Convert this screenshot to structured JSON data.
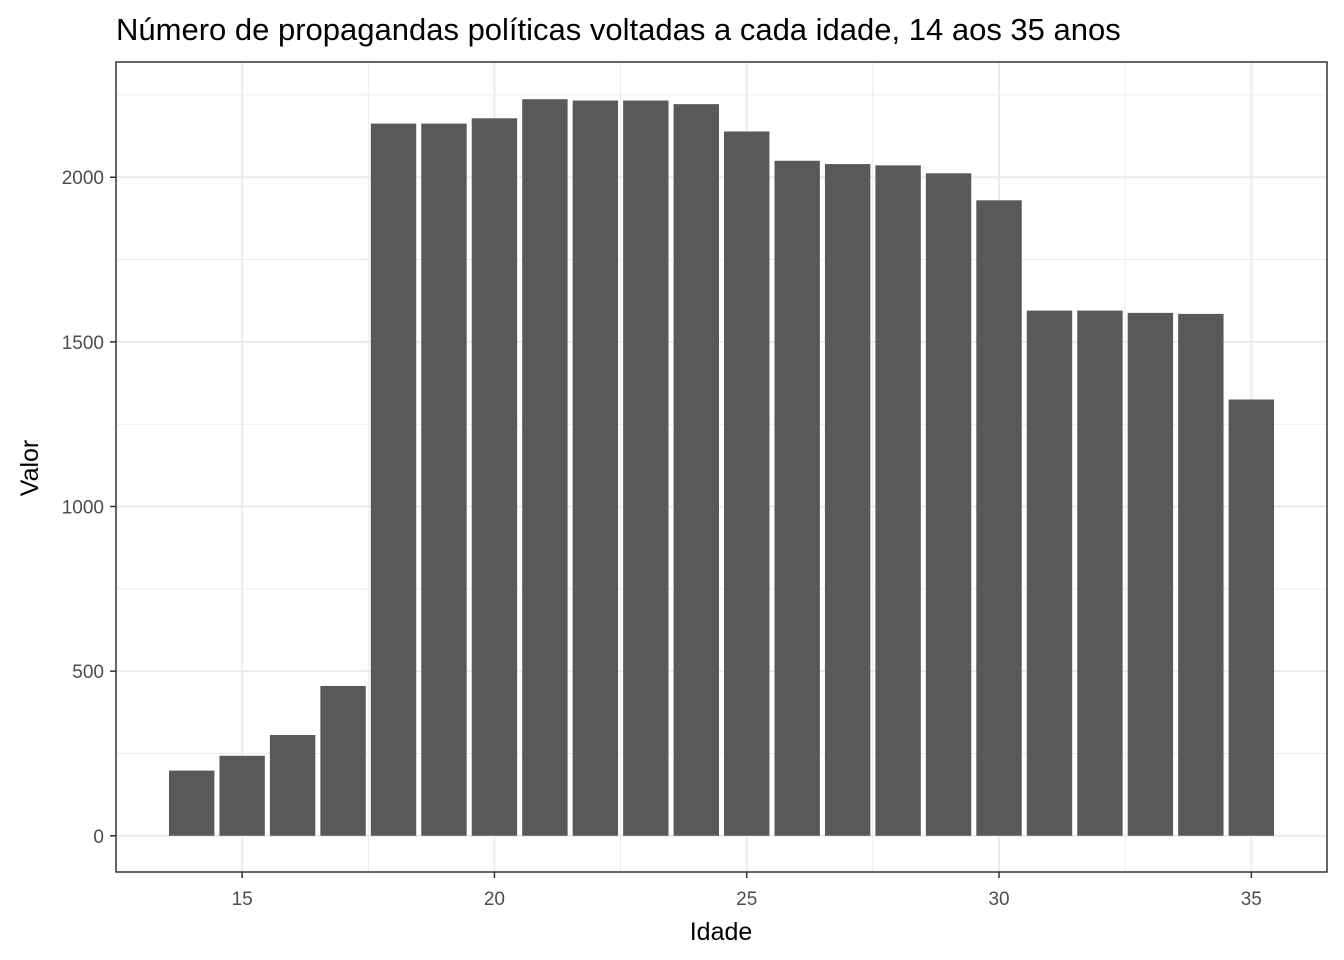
{
  "chart_data": {
    "type": "bar",
    "title": "Número de propagandas políticas voltadas a cada idade, 14 aos 35 anos",
    "xlabel": "Idade",
    "ylabel": "Valor",
    "x": [
      14,
      15,
      16,
      17,
      18,
      19,
      20,
      21,
      22,
      23,
      24,
      25,
      26,
      27,
      28,
      29,
      30,
      31,
      32,
      33,
      34,
      35
    ],
    "values": [
      198,
      243,
      306,
      455,
      2163,
      2163,
      2179,
      2237,
      2233,
      2233,
      2222,
      2139,
      2050,
      2040,
      2036,
      2012,
      1930,
      1595,
      1595,
      1588,
      1585,
      1325
    ],
    "xlim": [
      12.5,
      36.5
    ],
    "ylim": [
      -110,
      2350
    ],
    "x_ticks": [
      15,
      20,
      25,
      30,
      35
    ],
    "y_ticks": [
      0,
      500,
      1000,
      1500,
      2000
    ],
    "grid": true,
    "bar_color": "#595959",
    "grid_color": "#ebebeb",
    "panel_border_color": "#333333"
  }
}
